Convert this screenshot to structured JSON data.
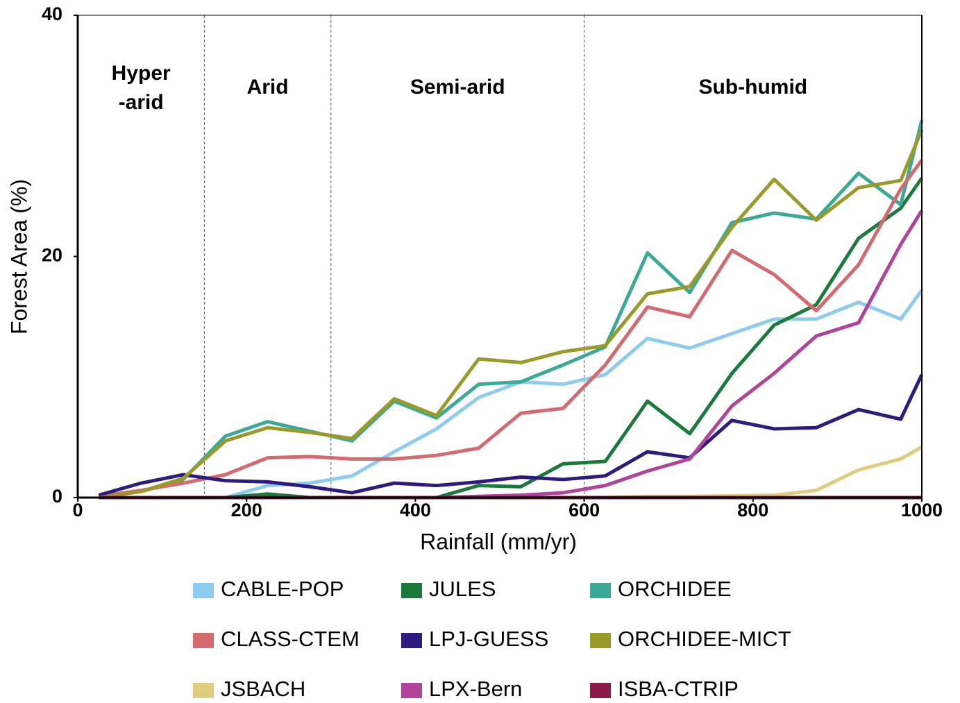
{
  "chart_data": {
    "type": "line",
    "x_label": "Rainfall (mm/yr)",
    "y_label": "Forest Area (%)",
    "xlim": [
      0,
      1000
    ],
    "xticks": [
      0,
      200,
      400,
      600,
      800,
      1000
    ],
    "ylim": [
      0,
      40
    ],
    "yticks": [
      0,
      20,
      40
    ],
    "grid": false,
    "zone_bounds": [
      150,
      300,
      600
    ],
    "zones": [
      [
        "Hyper",
        "-arid"
      ],
      [
        "Arid"
      ],
      [
        "Semi-arid"
      ],
      [
        "Sub-humid"
      ]
    ],
    "x": [
      25,
      75,
      125,
      175,
      225,
      275,
      325,
      375,
      425,
      475,
      525,
      575,
      625,
      675,
      725,
      775,
      825,
      875,
      925,
      975,
      1000
    ],
    "series": [
      {
        "name": "CABLE-POP",
        "color": "#8dcbef",
        "values": [
          0,
          0,
          0,
          0,
          1.0,
          1.2,
          1.8,
          3.8,
          5.7,
          8.3,
          9.6,
          9.4,
          10.2,
          13.2,
          12.4,
          13.6,
          14.8,
          14.8,
          16.2,
          14.8,
          17.2
        ]
      },
      {
        "name": "JULES",
        "color": "#1a7a3a",
        "values": [
          0,
          0,
          0,
          0,
          0.3,
          0,
          0,
          0,
          0,
          1.0,
          0.9,
          2.8,
          3.0,
          8.0,
          5.3,
          10.3,
          14.3,
          16.0,
          21.5,
          24.0,
          26.5
        ]
      },
      {
        "name": "ORCHIDEE",
        "color": "#3aaa95",
        "values": [
          0.1,
          0.5,
          1.5,
          5.1,
          6.3,
          5.5,
          4.7,
          8.0,
          6.6,
          9.4,
          9.6,
          11.0,
          12.5,
          20.3,
          17.0,
          22.8,
          23.6,
          23.1,
          26.9,
          24.3,
          31.3
        ]
      },
      {
        "name": "CLASS-CTEM",
        "color": "#d4696e",
        "values": [
          0.1,
          0.6,
          1.2,
          1.9,
          3.3,
          3.4,
          3.2,
          3.2,
          3.5,
          4.1,
          7.0,
          7.4,
          11.0,
          15.8,
          15.0,
          20.5,
          18.5,
          15.5,
          19.3,
          25.6,
          28.0
        ]
      },
      {
        "name": "LPJ-GUESS",
        "color": "#2d1b7e",
        "values": [
          0.2,
          1.2,
          1.9,
          1.4,
          1.3,
          0.9,
          0.4,
          1.2,
          1.0,
          1.3,
          1.7,
          1.5,
          1.8,
          3.8,
          3.3,
          6.4,
          5.7,
          5.8,
          7.3,
          6.5,
          10.2
        ]
      },
      {
        "name": "ORCHIDEE-MICT",
        "color": "#9a9a2a",
        "values": [
          0,
          0.5,
          1.6,
          4.7,
          5.8,
          5.4,
          4.9,
          8.2,
          6.8,
          11.5,
          11.2,
          12.1,
          12.6,
          16.9,
          17.5,
          22.4,
          26.4,
          23.0,
          25.7,
          26.3,
          30.5
        ]
      },
      {
        "name": "JSBACH",
        "color": "#e0cc7e",
        "values": [
          0,
          0,
          0,
          0,
          0,
          0,
          0,
          0,
          0,
          0,
          0,
          0,
          0,
          0.1,
          0.1,
          0.15,
          0.2,
          0.6,
          2.3,
          3.2,
          4.2
        ]
      },
      {
        "name": "LPX-Bern",
        "color": "#b0449a",
        "values": [
          0,
          0,
          0,
          0,
          0,
          0,
          0,
          0,
          0,
          0.1,
          0.2,
          0.4,
          1.0,
          2.2,
          3.2,
          7.6,
          10.3,
          13.4,
          14.5,
          21.0,
          23.8
        ]
      },
      {
        "name": "ISBA-CTRIP",
        "color": "#8b1a4a",
        "values": [
          0,
          0,
          0,
          0,
          0,
          0,
          0,
          0,
          0,
          0,
          0,
          0,
          0,
          0,
          0,
          0,
          0,
          0,
          0,
          0,
          0
        ]
      }
    ]
  }
}
